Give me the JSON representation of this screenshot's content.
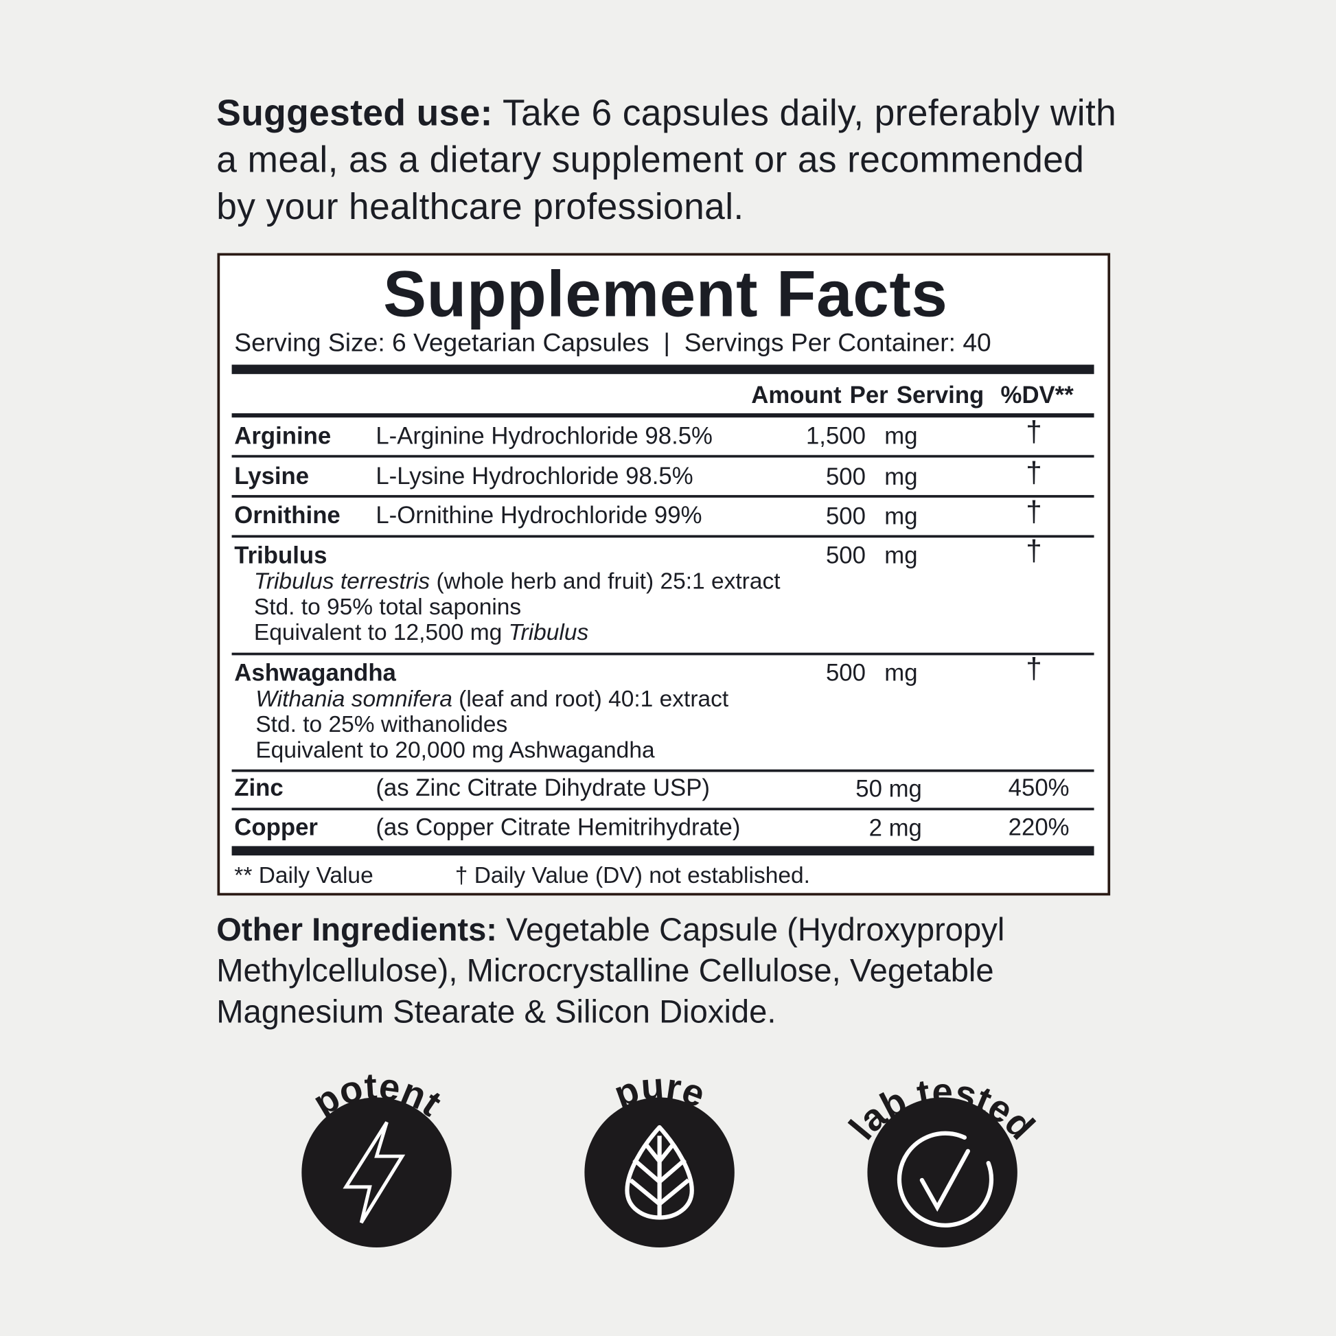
{
  "suggested_use": {
    "label": "Suggested use:",
    "text": " Take 6 capsules daily, preferably with a meal, as a dietary supplement or as recommended by your healthcare professional."
  },
  "facts": {
    "title": "Supplement Facts",
    "serving": "Serving Size: 6 Vegetarian Capsules  |  Servings Per Container: 40",
    "header": "Amount Per Serving  %DV**",
    "rows": [
      {
        "name": "Arginine",
        "desc": "L-Arginine Hydrochloride 98.5%",
        "amount": "1,500",
        "unit": "mg",
        "dv": "†"
      },
      {
        "name": "Lysine",
        "desc": "L-Lysine Hydrochloride 98.5%",
        "amount": "500",
        "unit": "mg",
        "dv": "†"
      },
      {
        "name": "Ornithine",
        "desc": "L-Ornithine Hydrochloride 99%",
        "amount": "500",
        "unit": "mg",
        "dv": "†"
      },
      {
        "name": "Tribulus",
        "sub": [
          "Tribulus terrestris",
          " (whole herb and fruit) 25:1 extract",
          "Std. to 95% total saponins",
          "Equivalent to 12,500 mg ",
          "Tribulus"
        ],
        "amount": "500",
        "unit": "mg",
        "dv": "†"
      },
      {
        "name": "Ashwagandha",
        "sub": [
          "Withania somnifera",
          " (leaf and root) 40:1 extract",
          "Std. to 25% withanolides",
          "Equivalent to 20,000 mg Ashwagandha"
        ],
        "amount": "500",
        "unit": "mg",
        "dv": "†"
      },
      {
        "name": "Zinc",
        "desc": "(as Zinc Citrate Dihydrate USP)",
        "amount": "50 mg",
        "dv": "450%"
      },
      {
        "name": "Copper",
        "desc": "(as Copper Citrate Hemitrihydrate)",
        "amount": "2 mg",
        "dv": "220%"
      }
    ],
    "footnote_dv": "** Daily Value",
    "footnote_dagger": "† Daily Value (DV) not established."
  },
  "other_ingredients": {
    "label": "Other Ingredients:",
    "text": " Vegetable Capsule (Hydroxypropyl Methylcellulose), Microcrystalline Cellulose, Vegetable Magnesium Stearate & Silicon Dioxide."
  },
  "badges": [
    {
      "label": "potent",
      "icon": "lightning-icon"
    },
    {
      "label": "pure",
      "icon": "leaf-icon"
    },
    {
      "label": "lab tested",
      "icon": "check-circle-icon"
    }
  ],
  "colors": {
    "text": "#1b1d24",
    "background": "#f0f0ee",
    "badge": "#1c1a1c",
    "border": "#2a1a14"
  }
}
